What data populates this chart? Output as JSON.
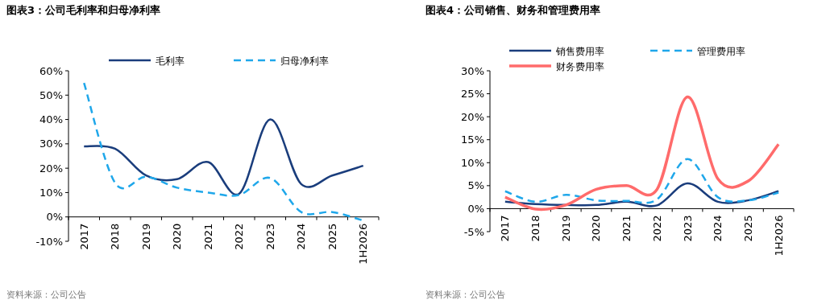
{
  "chart_data": [
    {
      "type": "line",
      "title": "图表3：公司毛利率和归母净利率",
      "categories": [
        "2017",
        "2018",
        "2019",
        "2020",
        "2021",
        "2022",
        "2023",
        "2024",
        "2025",
        "1H2026"
      ],
      "series": [
        {
          "name": "毛利率",
          "color": "#1a3d7c",
          "line_style": "solid",
          "values": [
            29,
            28,
            17,
            15.5,
            22.5,
            9.5,
            40,
            13.5,
            17,
            21
          ]
        },
        {
          "name": "归母净利率",
          "color": "#1fa7ea",
          "line_style": "dashed",
          "values": [
            55,
            14,
            16.5,
            12,
            10,
            9,
            16,
            2,
            2,
            -1.5
          ]
        }
      ],
      "ylim": [
        -10,
        60
      ],
      "yticks": [
        {
          "value": -10,
          "label": "-10%"
        },
        {
          "value": 0,
          "label": "0%"
        },
        {
          "value": 10,
          "label": "10%"
        },
        {
          "value": 20,
          "label": "20%"
        },
        {
          "value": 30,
          "label": "30%"
        },
        {
          "value": 40,
          "label": "40%"
        },
        {
          "value": 50,
          "label": "50%"
        },
        {
          "value": 60,
          "label": "60%"
        }
      ],
      "legend": "top",
      "grid": false,
      "marker": "none",
      "annotations": [
        "资料来源：公司公告"
      ]
    },
    {
      "type": "line",
      "title": "图表4：公司销售、财务和管理费用率",
      "categories": [
        "2017",
        "2018",
        "2019",
        "2020",
        "2021",
        "2022",
        "2023",
        "2024",
        "2025",
        "1H2026"
      ],
      "series": [
        {
          "name": "销售费用率",
          "color": "#1a3d7c",
          "line_style": "solid",
          "values": [
            1.5,
            1,
            0.8,
            0.8,
            1.5,
            0.7,
            5.5,
            1.5,
            1.8,
            3.8
          ]
        },
        {
          "name": "管理费用率",
          "color": "#1fa7ea",
          "line_style": "dashed",
          "values": [
            3.8,
            1.5,
            3,
            1.8,
            1.7,
            2,
            10.8,
            2.5,
            1.8,
            3.5
          ]
        },
        {
          "name": "财务费用率",
          "color": "#ff6b6b",
          "line_style": "solid",
          "values": [
            2.5,
            -0.1,
            0.8,
            4.2,
            5,
            4.2,
            24.3,
            6.5,
            6,
            14
          ]
        }
      ],
      "ylim": [
        -5,
        30
      ],
      "yticks": [
        {
          "value": -5,
          "label": "-5%"
        },
        {
          "value": 0,
          "label": "0%"
        },
        {
          "value": 5,
          "label": "5%"
        },
        {
          "value": 10,
          "label": "10%"
        },
        {
          "value": 15,
          "label": "15%"
        },
        {
          "value": 20,
          "label": "20%"
        },
        {
          "value": 25,
          "label": "25%"
        },
        {
          "value": 30,
          "label": "30%"
        }
      ],
      "legend": "top",
      "grid": false,
      "marker": "none",
      "annotations": [
        "资料来源：公司公告"
      ]
    }
  ]
}
